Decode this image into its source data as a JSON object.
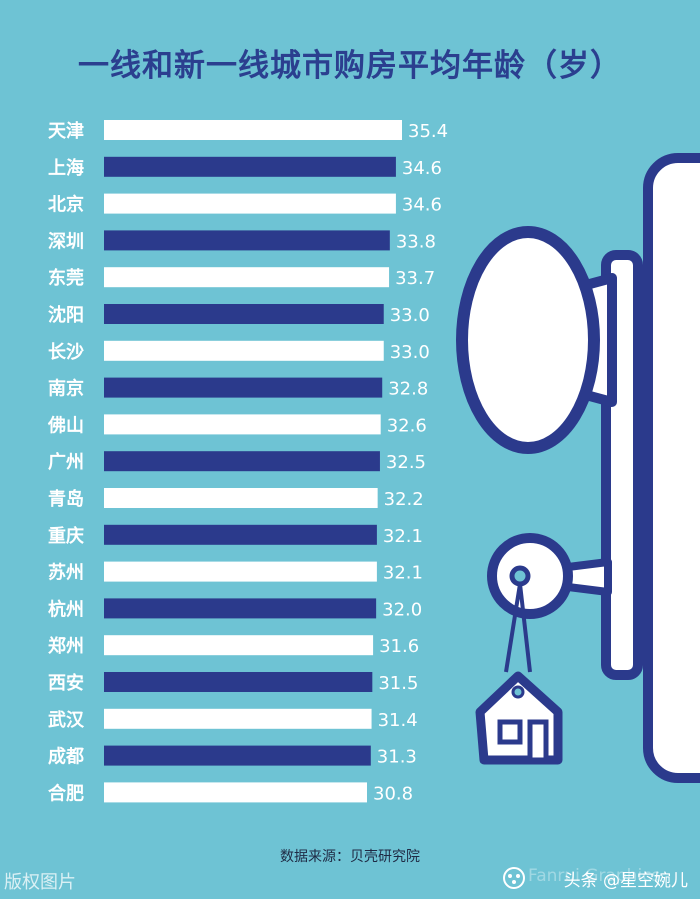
{
  "title": "一线和新一线城市购房平均年龄（岁）",
  "source": "数据来源：贝壳研究院",
  "watermark_left": "版权图片",
  "watermark_bg": "Fanrui Graphics",
  "credit": "头条 @星空婉儿",
  "colors": {
    "background": "#6ec3d4",
    "bar_light": "#ffffff",
    "bar_dark": "#2b3a8c",
    "label": "#ffffff"
  },
  "chart_data": {
    "type": "bar",
    "orientation": "horizontal",
    "title": "一线和新一线城市购房平均年龄（岁）",
    "categories": [
      "天津",
      "上海",
      "北京",
      "深圳",
      "东莞",
      "沈阳",
      "长沙",
      "南京",
      "佛山",
      "广州",
      "青岛",
      "重庆",
      "苏州",
      "杭州",
      "郑州",
      "西安",
      "武汉",
      "成都",
      "合肥"
    ],
    "value_labels": [
      "35.4",
      "34.6",
      "34.6",
      "33.8",
      "33.7",
      "33.0",
      "33.0",
      "32.8",
      "32.6",
      "32.5",
      "32.2",
      "32.1",
      "32.1",
      "32.0",
      "31.6",
      "31.5",
      "31.4",
      "31.3",
      "30.8"
    ],
    "values": [
      35.4,
      34.6,
      34.6,
      33.8,
      33.7,
      33.0,
      33.0,
      32.8,
      32.6,
      32.5,
      32.2,
      32.1,
      32.1,
      32.0,
      31.6,
      31.5,
      31.4,
      31.3,
      30.8
    ],
    "bar_colors": [
      "light",
      "dark",
      "light",
      "dark",
      "light",
      "dark",
      "light",
      "dark",
      "light",
      "dark",
      "light",
      "dark",
      "light",
      "dark",
      "light",
      "dark",
      "light",
      "dark",
      "light"
    ],
    "xlabel": "",
    "ylabel": "",
    "grid": false,
    "legend": "none"
  }
}
